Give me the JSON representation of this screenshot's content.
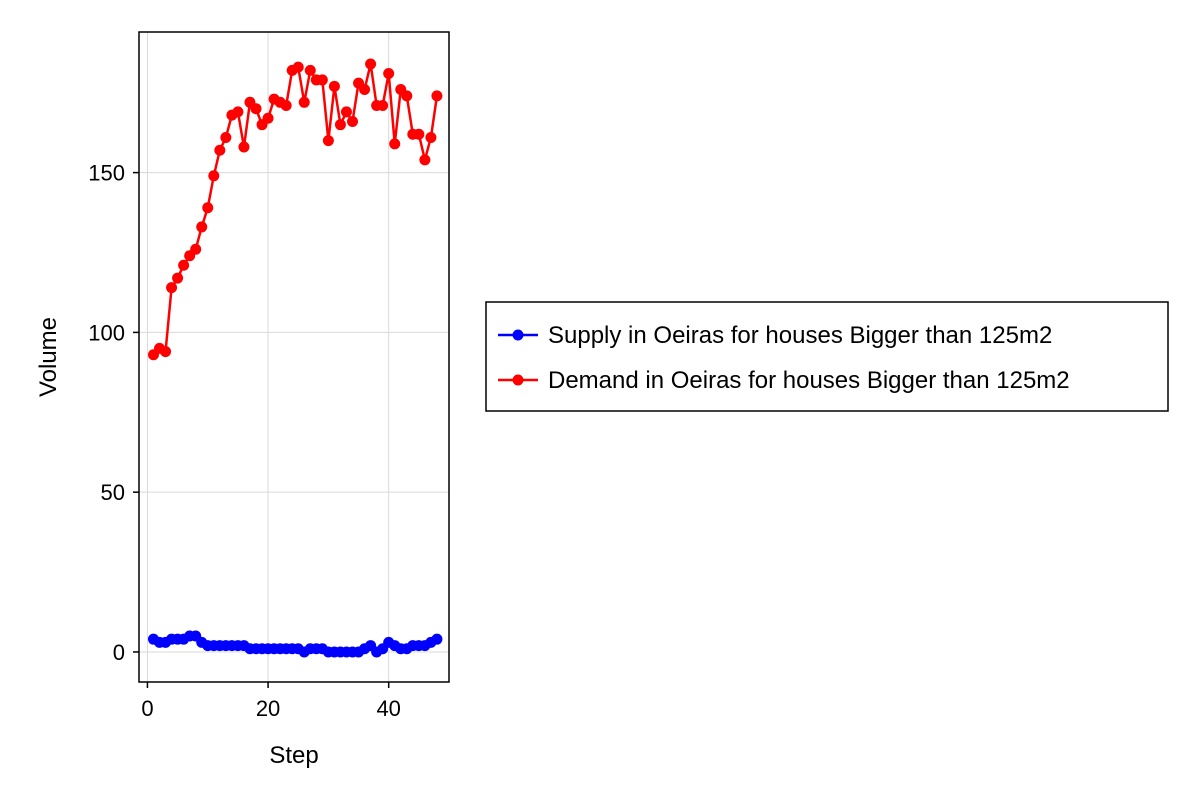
{
  "chart_data": {
    "type": "line",
    "xlabel": "Step",
    "ylabel": "Volume",
    "xlim": [
      -1.4,
      50
    ],
    "ylim": [
      -9.4,
      194
    ],
    "xticks": [
      0,
      20,
      40
    ],
    "yticks": [
      0,
      50,
      100,
      150
    ],
    "grid": true,
    "legend_position": "right",
    "series": [
      {
        "name": "Supply in Oeiras for houses Bigger than 125m2",
        "color": "#0000ff",
        "x": [
          1,
          2,
          3,
          4,
          5,
          6,
          7,
          8,
          9,
          10,
          11,
          12,
          13,
          14,
          15,
          16,
          17,
          18,
          19,
          20,
          21,
          22,
          23,
          24,
          25,
          26,
          27,
          28,
          29,
          30,
          31,
          32,
          33,
          34,
          35,
          36,
          37,
          38,
          39,
          40,
          41,
          42,
          43,
          44,
          45,
          46,
          47,
          48
        ],
        "y": [
          4,
          3,
          3,
          4,
          4,
          4,
          5,
          5,
          3,
          2,
          2,
          2,
          2,
          2,
          2,
          2,
          1,
          1,
          1,
          1,
          1,
          1,
          1,
          1,
          1,
          0,
          1,
          1,
          1,
          0,
          0,
          0,
          0,
          0,
          0,
          1,
          2,
          0,
          1,
          3,
          2,
          1,
          1,
          2,
          2,
          2,
          3,
          4
        ]
      },
      {
        "name": "Demand in Oeiras for houses Bigger than 125m2",
        "color": "#ff0000",
        "x": [
          1,
          2,
          3,
          4,
          5,
          6,
          7,
          8,
          9,
          10,
          11,
          12,
          13,
          14,
          15,
          16,
          17,
          18,
          19,
          20,
          21,
          22,
          23,
          24,
          25,
          26,
          27,
          28,
          29,
          30,
          31,
          32,
          33,
          34,
          35,
          36,
          37,
          38,
          39,
          40,
          41,
          42,
          43,
          44,
          45,
          46,
          47,
          48
        ],
        "y": [
          93,
          95,
          94,
          114,
          117,
          121,
          124,
          126,
          133,
          139,
          149,
          157,
          161,
          168,
          169,
          158,
          172,
          170,
          165,
          167,
          173,
          172,
          171,
          182,
          183,
          172,
          182,
          179,
          179,
          160,
          177,
          165,
          169,
          166,
          178,
          176,
          184,
          171,
          171,
          181,
          159,
          176,
          174,
          162,
          162,
          154,
          161,
          174
        ]
      }
    ]
  }
}
